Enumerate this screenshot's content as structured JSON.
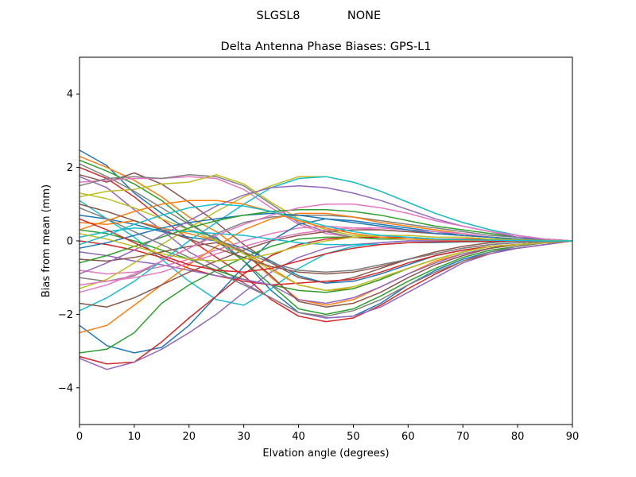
{
  "figure": {
    "header_left": "SLGSL8",
    "header_right": "NONE"
  },
  "chart_data": {
    "type": "line",
    "title": "Delta Antenna Phase Biases: GPS-L1",
    "xlabel": "Elvation angle (degrees)",
    "ylabel": "Bias from mean (mm)",
    "xlim": [
      0,
      90
    ],
    "ylim": [
      -5,
      5
    ],
    "xticks": [
      0,
      10,
      20,
      30,
      40,
      50,
      60,
      70,
      80,
      90
    ],
    "yticks": [
      -4,
      -2,
      0,
      2,
      4
    ],
    "xtick_labels": [
      "0",
      "10",
      "20",
      "30",
      "40",
      "50",
      "60",
      "70",
      "80",
      "90"
    ],
    "ytick_labels": [
      "−4",
      "−2",
      "0",
      "2",
      "4"
    ],
    "grid": false,
    "x": [
      0,
      5,
      10,
      15,
      20,
      25,
      30,
      35,
      40,
      45,
      50,
      55,
      60,
      65,
      70,
      75,
      80,
      85,
      90
    ],
    "colors": [
      "#1f77b4",
      "#ff7f0e",
      "#2ca02c",
      "#d62728",
      "#9467bd",
      "#8c564b",
      "#e377c2",
      "#7f7f7f",
      "#bcbd22",
      "#17becf"
    ],
    "series": [
      {
        "values": [
          2.47,
          2.05,
          1.3,
          0.75,
          0.3,
          0.1,
          -0.55,
          -1.35,
          -1.95,
          -2.1,
          -2.05,
          -1.7,
          -1.2,
          -0.8,
          -0.5,
          -0.3,
          -0.2,
          -0.1,
          0
        ]
      },
      {
        "values": [
          2.3,
          2.0,
          1.65,
          1.2,
          0.65,
          0.25,
          -0.3,
          -1.0,
          -1.6,
          -1.75,
          -1.6,
          -1.25,
          -0.9,
          -0.55,
          -0.35,
          -0.2,
          -0.1,
          -0.05,
          0
        ]
      },
      {
        "values": [
          2.2,
          1.9,
          1.55,
          1.1,
          0.5,
          0.0,
          -0.55,
          -1.2,
          -1.85,
          -2.0,
          -1.85,
          -1.5,
          -1.1,
          -0.75,
          -0.45,
          -0.25,
          -0.15,
          -0.05,
          0
        ]
      },
      {
        "values": [
          2.0,
          1.7,
          1.2,
          0.6,
          0.05,
          -0.45,
          -0.95,
          -1.6,
          -2.05,
          -2.2,
          -2.1,
          -1.75,
          -1.3,
          -0.9,
          -0.55,
          -0.35,
          -0.2,
          -0.1,
          0
        ]
      },
      {
        "values": [
          1.75,
          1.45,
          0.85,
          0.3,
          -0.3,
          -0.7,
          -1.15,
          -1.55,
          -1.95,
          -2.1,
          -2.05,
          -1.8,
          -1.4,
          -1.0,
          -0.6,
          -0.35,
          -0.2,
          -0.1,
          0
        ]
      },
      {
        "values": [
          1.8,
          1.6,
          1.85,
          1.55,
          1.05,
          0.5,
          -0.1,
          -0.6,
          -1.0,
          -1.15,
          -1.0,
          -0.75,
          -0.5,
          -0.3,
          -0.15,
          -0.05,
          0.0,
          0.0,
          0
        ]
      },
      {
        "values": [
          1.6,
          1.65,
          1.7,
          1.7,
          1.75,
          1.7,
          1.4,
          0.9,
          0.45,
          0.2,
          0.1,
          0.05,
          0.05,
          0.05,
          0.05,
          0.05,
          0.05,
          0.03,
          0
        ]
      },
      {
        "values": [
          1.5,
          1.7,
          1.75,
          1.7,
          1.8,
          1.75,
          1.5,
          1.0,
          0.5,
          0.25,
          0.1,
          0.05,
          0.05,
          0.05,
          0.05,
          0.05,
          0.05,
          0.03,
          0
        ]
      },
      {
        "values": [
          1.2,
          1.35,
          1.4,
          1.55,
          1.6,
          1.8,
          1.55,
          1.05,
          0.6,
          0.3,
          0.15,
          0.1,
          0.05,
          0.05,
          0.05,
          0.05,
          0.05,
          0.03,
          0
        ]
      },
      {
        "values": [
          1.1,
          0.6,
          0.1,
          -0.5,
          -1.1,
          -1.6,
          -1.75,
          -1.3,
          -0.75,
          -0.35,
          -0.15,
          -0.05,
          0.0,
          0.0,
          0.0,
          0.0,
          0.0,
          0.0,
          0
        ]
      },
      {
        "values": [
          0.7,
          0.6,
          0.45,
          0.25,
          0.1,
          0.0,
          -0.2,
          -0.55,
          -0.95,
          -1.15,
          -1.1,
          -0.9,
          -0.65,
          -0.4,
          -0.25,
          -0.15,
          -0.1,
          -0.05,
          0
        ]
      },
      {
        "values": [
          0.5,
          0.45,
          0.55,
          0.35,
          0.2,
          0.0,
          -0.3,
          -0.75,
          -1.2,
          -1.35,
          -1.3,
          -1.05,
          -0.75,
          -0.5,
          -0.3,
          -0.15,
          -0.1,
          -0.05,
          0
        ]
      },
      {
        "values": [
          0.3,
          0.2,
          0.0,
          -0.25,
          -0.5,
          -0.8,
          -1.05,
          -1.2,
          -1.35,
          -1.4,
          -1.3,
          -1.05,
          -0.75,
          -0.5,
          -0.3,
          -0.15,
          -0.1,
          -0.05,
          0
        ]
      },
      {
        "values": [
          0.0,
          -0.1,
          -0.25,
          -0.45,
          -0.75,
          -0.95,
          -1.1,
          -1.2,
          -1.15,
          -1.1,
          -1.05,
          -0.85,
          -0.6,
          -0.4,
          -0.25,
          -0.15,
          -0.1,
          -0.05,
          0
        ]
      },
      {
        "values": [
          -0.3,
          -0.4,
          -0.55,
          -0.65,
          -0.8,
          -0.95,
          -1.05,
          -1.2,
          -1.6,
          -1.7,
          -1.55,
          -1.25,
          -0.9,
          -0.6,
          -0.35,
          -0.2,
          -0.1,
          -0.05,
          0
        ]
      },
      {
        "values": [
          -0.5,
          -0.55,
          -0.45,
          -0.3,
          -0.15,
          -0.05,
          -0.3,
          -0.95,
          -1.65,
          -1.8,
          -1.7,
          -1.4,
          -1.0,
          -0.65,
          -0.4,
          -0.2,
          -0.1,
          -0.05,
          0
        ]
      },
      {
        "values": [
          -0.8,
          -0.9,
          -0.85,
          -0.7,
          -0.5,
          -0.25,
          0.0,
          0.2,
          0.35,
          0.4,
          0.35,
          0.3,
          0.25,
          0.2,
          0.15,
          0.1,
          0.05,
          0.03,
          0
        ]
      },
      {
        "values": [
          -1.0,
          -1.1,
          -0.95,
          -0.55,
          -0.2,
          0.2,
          0.5,
          0.65,
          0.7,
          0.7,
          0.65,
          0.55,
          0.45,
          0.35,
          0.25,
          0.15,
          0.1,
          0.05,
          0
        ]
      },
      {
        "values": [
          -1.3,
          -1.05,
          -0.6,
          -0.1,
          0.35,
          0.8,
          1.2,
          1.5,
          1.75,
          1.75,
          1.6,
          1.35,
          1.05,
          0.75,
          0.5,
          0.3,
          0.15,
          0.05,
          0
        ]
      },
      {
        "values": [
          -1.9,
          -1.55,
          -1.1,
          -0.55,
          0.0,
          0.5,
          1.0,
          1.45,
          1.7,
          1.75,
          1.6,
          1.35,
          1.05,
          0.75,
          0.5,
          0.3,
          0.15,
          0.05,
          0
        ]
      },
      {
        "values": [
          -2.3,
          -2.85,
          -3.05,
          -2.9,
          -2.3,
          -1.5,
          -0.7,
          0.0,
          0.45,
          0.6,
          0.55,
          0.45,
          0.35,
          0.25,
          0.15,
          0.1,
          0.05,
          0.03,
          0
        ]
      },
      {
        "values": [
          -2.5,
          -2.3,
          -1.75,
          -1.2,
          -0.65,
          -0.15,
          0.3,
          0.6,
          0.75,
          0.75,
          0.65,
          0.5,
          0.4,
          0.3,
          0.2,
          0.1,
          0.05,
          0.03,
          0
        ]
      },
      {
        "values": [
          -3.05,
          -2.95,
          -2.5,
          -1.7,
          -1.2,
          -0.8,
          -0.45,
          -0.15,
          0.05,
          0.1,
          0.1,
          0.05,
          0.05,
          0.05,
          0.03,
          0.02,
          0.01,
          0.0,
          0
        ]
      },
      {
        "values": [
          -3.15,
          -3.35,
          -3.3,
          -2.75,
          -2.1,
          -1.5,
          -0.9,
          -0.4,
          -0.1,
          0.05,
          0.1,
          0.1,
          0.1,
          0.05,
          0.05,
          0.03,
          0.02,
          0.01,
          0
        ]
      },
      {
        "values": [
          -3.2,
          -3.5,
          -3.3,
          -2.95,
          -2.5,
          -2.0,
          -1.4,
          -0.85,
          -0.45,
          -0.2,
          -0.1,
          -0.05,
          0.0,
          0.0,
          0.0,
          0.0,
          0.0,
          0.0,
          0
        ]
      },
      {
        "values": [
          -1.7,
          -1.8,
          -1.55,
          -1.2,
          -0.85,
          -0.55,
          -0.25,
          0.0,
          0.15,
          0.25,
          0.3,
          0.3,
          0.25,
          0.2,
          0.15,
          0.1,
          0.05,
          0.03,
          0
        ]
      },
      {
        "values": [
          -1.2,
          -1.1,
          -1.0,
          -0.85,
          -0.6,
          -0.35,
          -0.15,
          0.05,
          0.2,
          0.3,
          0.35,
          0.35,
          0.3,
          0.25,
          0.2,
          0.1,
          0.05,
          0.03,
          0
        ]
      },
      {
        "values": [
          0.9,
          0.6,
          0.25,
          -0.1,
          -0.45,
          -0.85,
          -1.2,
          -1.55,
          -1.95,
          -2.05,
          -1.9,
          -1.6,
          -1.2,
          -0.85,
          -0.55,
          -0.3,
          -0.15,
          -0.05,
          0
        ]
      },
      {
        "values": [
          1.3,
          1.15,
          0.9,
          0.6,
          0.3,
          0.0,
          -0.35,
          -0.8,
          -1.2,
          -1.35,
          -1.25,
          -1.0,
          -0.75,
          -0.5,
          -0.3,
          -0.15,
          -0.1,
          -0.05,
          0
        ]
      },
      {
        "values": [
          0.1,
          0.25,
          0.35,
          0.3,
          0.25,
          0.2,
          0.15,
          0.05,
          -0.05,
          -0.1,
          -0.1,
          -0.1,
          -0.05,
          -0.05,
          -0.03,
          -0.02,
          -0.01,
          0.0,
          0
        ]
      },
      {
        "values": [
          -0.2,
          -0.05,
          0.15,
          0.35,
          0.5,
          0.6,
          0.7,
          0.75,
          0.7,
          0.6,
          0.5,
          0.4,
          0.3,
          0.2,
          0.15,
          0.1,
          0.05,
          0.03,
          0
        ]
      },
      {
        "values": [
          0.3,
          0.55,
          0.8,
          1.0,
          1.1,
          1.1,
          1.0,
          0.8,
          0.55,
          0.35,
          0.2,
          0.1,
          0.05,
          0.03,
          0.02,
          0.01,
          0.0,
          0.0,
          0
        ]
      },
      {
        "values": [
          -0.6,
          -0.4,
          -0.15,
          0.1,
          0.35,
          0.55,
          0.7,
          0.8,
          0.85,
          0.85,
          0.8,
          0.7,
          0.55,
          0.4,
          0.3,
          0.2,
          0.1,
          0.05,
          0
        ]
      },
      {
        "values": [
          0.6,
          0.3,
          -0.05,
          -0.4,
          -0.65,
          -0.8,
          -0.85,
          -0.75,
          -0.55,
          -0.35,
          -0.2,
          -0.1,
          -0.05,
          -0.03,
          -0.02,
          -0.01,
          0.0,
          0.0,
          0
        ]
      },
      {
        "values": [
          -0.9,
          -0.6,
          -0.25,
          0.15,
          0.55,
          0.95,
          1.25,
          1.45,
          1.5,
          1.45,
          1.3,
          1.1,
          0.85,
          0.6,
          0.4,
          0.25,
          0.1,
          0.05,
          0
        ]
      },
      {
        "values": [
          1.0,
          0.8,
          0.55,
          0.3,
          0.05,
          -0.2,
          -0.45,
          -0.7,
          -0.85,
          -0.9,
          -0.85,
          -0.7,
          -0.5,
          -0.35,
          -0.2,
          -0.1,
          -0.05,
          -0.02,
          0
        ]
      },
      {
        "values": [
          -1.4,
          -1.2,
          -0.9,
          -0.55,
          -0.2,
          0.15,
          0.45,
          0.7,
          0.9,
          1.0,
          1.0,
          0.9,
          0.75,
          0.55,
          0.4,
          0.25,
          0.15,
          0.05,
          0
        ]
      },
      {
        "values": [
          2.1,
          1.75,
          1.35,
          0.9,
          0.45,
          0.05,
          -0.3,
          -0.6,
          -0.8,
          -0.85,
          -0.8,
          -0.65,
          -0.5,
          -0.35,
          -0.2,
          -0.1,
          -0.05,
          -0.02,
          0
        ]
      },
      {
        "values": [
          0.2,
          0.05,
          -0.15,
          -0.35,
          -0.5,
          -0.55,
          -0.5,
          -0.35,
          -0.15,
          0.0,
          0.1,
          0.15,
          0.15,
          0.1,
          0.1,
          0.05,
          0.03,
          0.01,
          0
        ]
      },
      {
        "values": [
          -0.1,
          0.15,
          0.45,
          0.7,
          0.9,
          1.0,
          0.95,
          0.8,
          0.6,
          0.4,
          0.25,
          0.15,
          0.1,
          0.05,
          0.03,
          0.02,
          0.01,
          0.0,
          0
        ]
      }
    ]
  }
}
